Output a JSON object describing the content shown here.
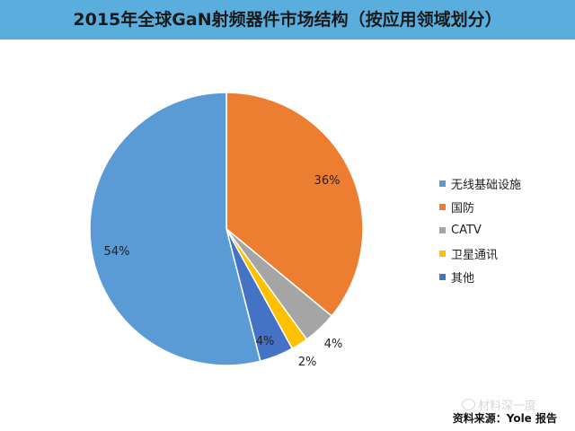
{
  "header": {
    "title": "2015年全球GaN射频器件市场结构（按应用领域划分）"
  },
  "chart_data": {
    "type": "pie",
    "title": "2015年全球GaN射频器件市场结构（按应用领域划分）",
    "slices": [
      {
        "name": "国防",
        "value": 36,
        "label": "36%",
        "color": "#ed7d31"
      },
      {
        "name": "CATV",
        "value": 4,
        "label": "4%",
        "color": "#a5a5a5"
      },
      {
        "name": "卫星通讯",
        "value": 2,
        "label": "2%",
        "color": "#ffc000"
      },
      {
        "name": "其他",
        "value": 4,
        "label": "4%",
        "color": "#4472c4"
      },
      {
        "name": "无线基础设施",
        "value": 54,
        "label": "54%",
        "color": "#5b9bd5"
      }
    ],
    "legend": {
      "position": "right",
      "entries": [
        {
          "name": "无线基础设施",
          "color": "#5b9bd5"
        },
        {
          "name": "国防",
          "color": "#ed7d31"
        },
        {
          "name": "CATV",
          "color": "#a5a5a5"
        },
        {
          "name": "卫星通讯",
          "color": "#ffc000"
        },
        {
          "name": "其他",
          "color": "#4472c4"
        }
      ]
    }
  },
  "source_note": "资料来源：Yole 报告",
  "watermark": "材料深一度"
}
